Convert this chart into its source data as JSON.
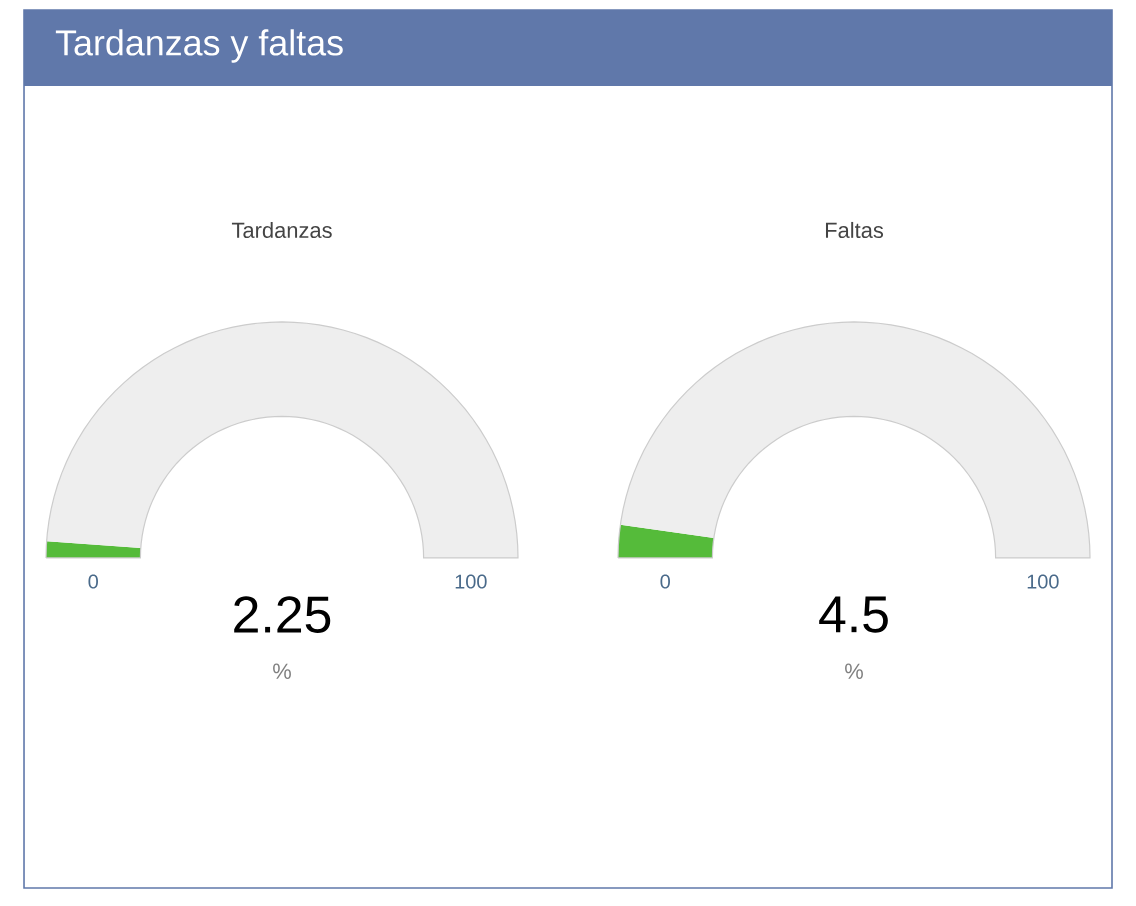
{
  "chart_data": [
    {
      "type": "other",
      "title": "Tardanzas y faltas"
    },
    {
      "type": "donut",
      "title": "Tardanzas",
      "categories": [
        null,
        null
      ],
      "values": [
        2.25,
        97.75
      ],
      "colors": [
        "#55bb3a",
        "#eeeeee"
      ],
      "annotations": [
        "0",
        "100",
        "2.25",
        "%"
      ]
    },
    {
      "type": "donut",
      "title": "Faltas",
      "categories": [
        null,
        null
      ],
      "values": [
        4.5,
        95.5
      ],
      "colors": [
        "#55bb3a",
        "#eeeeee"
      ],
      "annotations": [
        "0",
        "100",
        "4.5",
        "%"
      ]
    }
  ]
}
